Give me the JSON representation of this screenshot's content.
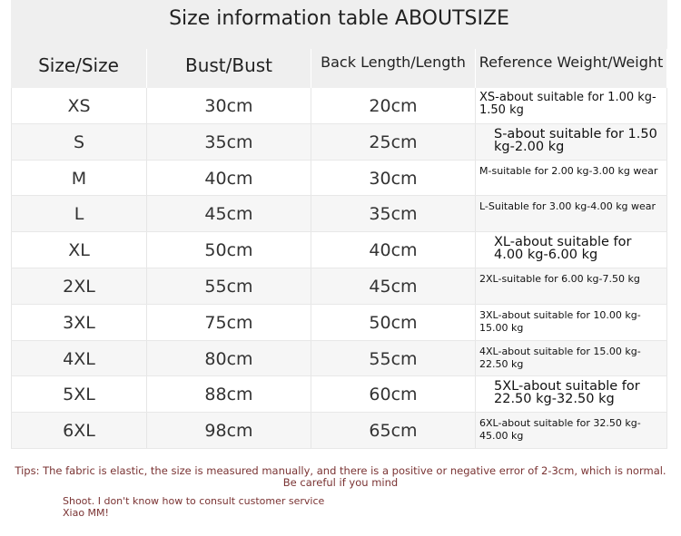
{
  "title": "Size information table ABOUTSIZE",
  "headers": [
    "Size/Size",
    "Bust/Bust",
    "Back Length/Length",
    "Reference Weight/Weight"
  ],
  "rows": [
    {
      "size": "XS",
      "bust": "30cm",
      "length": "20cm",
      "weight": "XS-about suitable for 1.00 kg-1.50 kg"
    },
    {
      "size": "S",
      "bust": "35cm",
      "length": "25cm",
      "weight": "S-about suitable for 1.50 kg-2.00 kg"
    },
    {
      "size": "M",
      "bust": "40cm",
      "length": "30cm",
      "weight": "M-suitable for 2.00 kg-3.00 kg wear"
    },
    {
      "size": "L",
      "bust": "45cm",
      "length": "35cm",
      "weight": "L-Suitable for 3.00 kg-4.00 kg wear"
    },
    {
      "size": "XL",
      "bust": "50cm",
      "length": "40cm",
      "weight": "XL-about suitable for 4.00 kg-6.00 kg"
    },
    {
      "size": "2XL",
      "bust": "55cm",
      "length": "45cm",
      "weight": "2XL-suitable for 6.00 kg-7.50 kg"
    },
    {
      "size": "3XL",
      "bust": "75cm",
      "length": "50cm",
      "weight": "3XL-about suitable for 10.00 kg-15.00 kg"
    },
    {
      "size": "4XL",
      "bust": "80cm",
      "length": "55cm",
      "weight": "4XL-about suitable for 15.00 kg-22.50 kg"
    },
    {
      "size": "5XL",
      "bust": "88cm",
      "length": "60cm",
      "weight": "5XL-about suitable for 22.50 kg-32.50 kg"
    },
    {
      "size": "6XL",
      "bust": "98cm",
      "length": "65cm",
      "weight": "6XL-about suitable for 32.50 kg-45.00 kg"
    }
  ],
  "tips": "Tips: The fabric is elastic, the size is measured manually, and there is a positive or negative error of 2-3cm, which is normal. Be careful if you mind",
  "note": "Shoot. I don't know how to consult customer service Xiao MM!"
}
